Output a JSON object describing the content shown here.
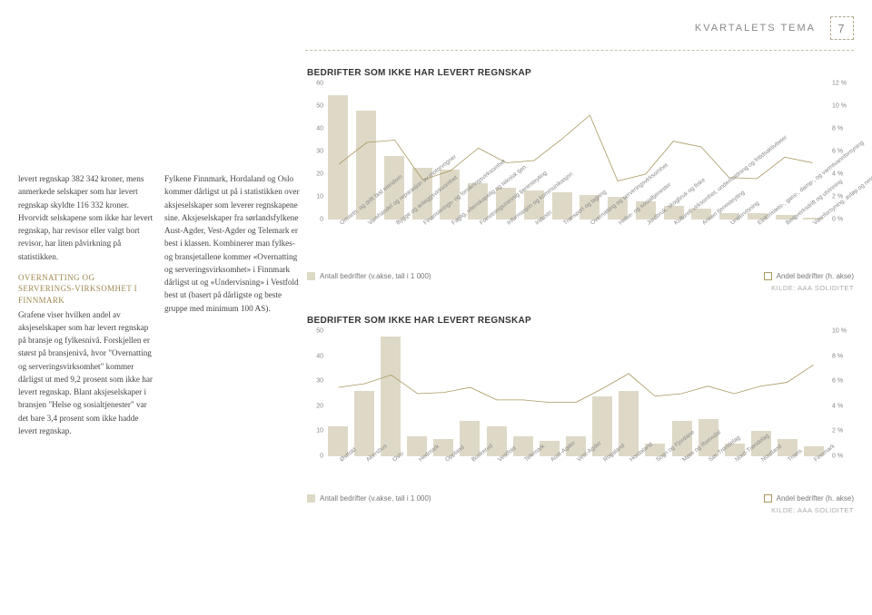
{
  "header": {
    "label": "KVARTALETS TEMA",
    "page": "7"
  },
  "col1": {
    "p1": "levert regnskap 382 342 kroner, mens anmerkede selskaper som har levert regnskap skyldte 116 332 kroner. Hvorvidt selskapene som ikke har levert regnskap, har revisor eller valgt bort revisor, har liten påvirkning på statistikken.",
    "sub": "OVERNATTING OG SERVERINGS-VIRKSOMHET I FINNMARK",
    "p2": "Grafene viser hvilken andel av aksjeselskaper som har levert regnskap på bransje og fylkesnivå. Forskjellen er størst på bransjenivå, hvor \"Overnatting og serveringsvirksomhet\" kommer dårligst ut med 9,2 prosent som ikke har levert regnskap. Blant aksjeselskaper i bransjen \"Helse og sosialtjenester\" var det bare 3,4 prosent som ikke hadde levert regnskap."
  },
  "col2": {
    "p1": "Fylkene Finnmark, Hordaland og Oslo kommer dårligst ut på i statistikken over aksjeselskaper som leverer regnskapene sine. Aksjeselskaper fra sørlandsfylkene Aust-Agder, Vest-Agder og Telemark er best i klassen. Kombinerer man fylkes- og bransjetallene kommer «Overnatting og serveringsvirksomhet» i Finnmark dårligst ut og «Undervisning» i Vestfold best ut (basert på dårligste og beste gruppe med minimum 100 AS)."
  },
  "chart1": {
    "title": "BEDRIFTER SOM IKKE HAR LEVERT REGNSKAP",
    "type": "bar+line",
    "bar_color": "#ded9c7",
    "line_color": "#a89860",
    "yleft": {
      "max": 60,
      "step": 10,
      "ticks": [
        "0",
        "10",
        "20",
        "30",
        "40",
        "50",
        "60"
      ]
    },
    "yright": {
      "max": 12,
      "step": 2,
      "ticks": [
        "0 %",
        "2 %",
        "4 %",
        "6 %",
        "8 %",
        "10 %",
        "12 %"
      ]
    },
    "categories": [
      "Omsetn. og drift fast eiendom",
      "Varehandel og reparasjon av motorvogner",
      "Bygge og anleggsvirksomhet",
      "Finansierings- og forsikringsvirksomhet",
      "Faglig, vitenskapelig og teknisk tjen.",
      "Forretningsmessig tjenesteyting",
      "Informasjon og kommunikasjon",
      "Industri",
      "Transport og lagring",
      "Overnatting og serveringsvirksomhet",
      "Helse- og sosialtjenester",
      "Jordbruk, skogbruk og fiske",
      "Kulturell virksomhet, underholdning og fritidsaktiviteter",
      "Annen tjenesteyting",
      "Undervisning",
      "Elektrisitets-, gass-, damp-, og varmtvannforsyning",
      "Bergverksdrift og utvinning",
      "Vannforsyning, avløp og renovasjonsvirksomhet"
    ],
    "bars": [
      55,
      48,
      28,
      23,
      22,
      16,
      14,
      13,
      12,
      11,
      10,
      8,
      6,
      5,
      3,
      3,
      2,
      1
    ],
    "line": [
      4.9,
      6.8,
      7.0,
      3.5,
      4.3,
      6.3,
      5.0,
      5.2,
      7.1,
      9.2,
      3.4,
      4.0,
      6.9,
      6.4,
      3.7,
      3.6,
      5.5,
      5.0
    ],
    "legend_left": "Antall bedrifter (v.akse, tall i 1 000)",
    "legend_right": "Andel bedrifter (h. akse)",
    "source": "KILDE: AAA SOLIDITET"
  },
  "chart2": {
    "title": "BEDRIFTER SOM IKKE HAR LEVERT REGNSKAP",
    "type": "bar+line",
    "bar_color": "#ded9c7",
    "line_color": "#a89860",
    "yleft": {
      "max": 50,
      "step": 10,
      "ticks": [
        "0",
        "10",
        "20",
        "30",
        "40",
        "50"
      ]
    },
    "yright": {
      "max": 10,
      "step": 2,
      "ticks": [
        "0 %",
        "2 %",
        "4 %",
        "6 %",
        "8 %",
        "10 %"
      ]
    },
    "categories": [
      "Østfold",
      "Akershus",
      "Oslo",
      "Hedmark",
      "Oppland",
      "Buskerud",
      "Vestfold",
      "Telemark",
      "Aust-Agder",
      "Vest-Agder",
      "Rogaland",
      "Hordaland",
      "Sogn og Fjordane",
      "Møre og Romsdal",
      "Sør-Trøndelag",
      "Nord-Trøndelag",
      "Nordland",
      "Troms",
      "Finnmark"
    ],
    "bars": [
      12,
      26,
      48,
      8,
      7,
      14,
      12,
      8,
      6,
      8,
      24,
      26,
      5,
      14,
      15,
      5,
      10,
      7,
      4
    ],
    "line": [
      5.5,
      5.8,
      6.5,
      5.0,
      5.1,
      5.5,
      4.5,
      4.5,
      4.3,
      4.3,
      5.4,
      6.6,
      4.8,
      5.0,
      5.6,
      5.0,
      5.6,
      5.9,
      7.3
    ],
    "legend_left": "Antall bedrifter (v.akse, tall i 1 000)",
    "legend_right": "Andel bedrifter (h. akse)",
    "source": "KILDE: AAA SOLIDITET"
  }
}
